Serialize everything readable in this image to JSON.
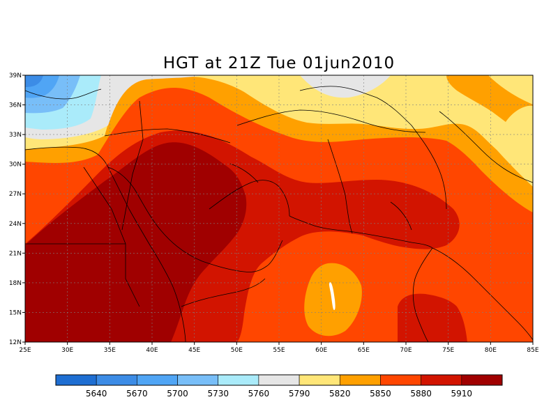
{
  "title": "HGT at 21Z Tue 01jun2010",
  "map": {
    "lon_range": [
      25,
      85
    ],
    "lat_range": [
      12,
      39
    ],
    "lon_ticks": [
      {
        "value": 25,
        "label": "25E"
      },
      {
        "value": 30,
        "label": "30E"
      },
      {
        "value": 35,
        "label": "35E"
      },
      {
        "value": 40,
        "label": "40E"
      },
      {
        "value": 45,
        "label": "45E"
      },
      {
        "value": 50,
        "label": "50E"
      },
      {
        "value": 55,
        "label": "55E"
      },
      {
        "value": 60,
        "label": "60E"
      },
      {
        "value": 65,
        "label": "65E"
      },
      {
        "value": 70,
        "label": "70E"
      },
      {
        "value": 75,
        "label": "75E"
      },
      {
        "value": 80,
        "label": "80E"
      },
      {
        "value": 85,
        "label": "85E"
      }
    ],
    "lat_ticks": [
      {
        "value": 12,
        "label": "12N"
      },
      {
        "value": 15,
        "label": "15N"
      },
      {
        "value": 18,
        "label": "18N"
      },
      {
        "value": 21,
        "label": "21N"
      },
      {
        "value": 24,
        "label": "24N"
      },
      {
        "value": 27,
        "label": "27N"
      },
      {
        "value": 30,
        "label": "30N"
      },
      {
        "value": 33,
        "label": "33N"
      },
      {
        "value": 36,
        "label": "36N"
      },
      {
        "value": 39,
        "label": "39N"
      }
    ],
    "grid": true
  },
  "colorbar": {
    "bins": [
      {
        "color": "#1e6ed2"
      },
      {
        "color": "#3c8ce6"
      },
      {
        "color": "#50a5f5"
      },
      {
        "color": "#78bef8"
      },
      {
        "color": "#aaebfa"
      },
      {
        "color": "#e6e6e6"
      },
      {
        "color": "#ffe678"
      },
      {
        "color": "#ffa000"
      },
      {
        "color": "#ff4600"
      },
      {
        "color": "#d21400"
      },
      {
        "color": "#a00000"
      }
    ],
    "labels": [
      "5640",
      "5670",
      "5700",
      "5730",
      "5760",
      "5790",
      "5820",
      "5850",
      "5880",
      "5910"
    ]
  }
}
